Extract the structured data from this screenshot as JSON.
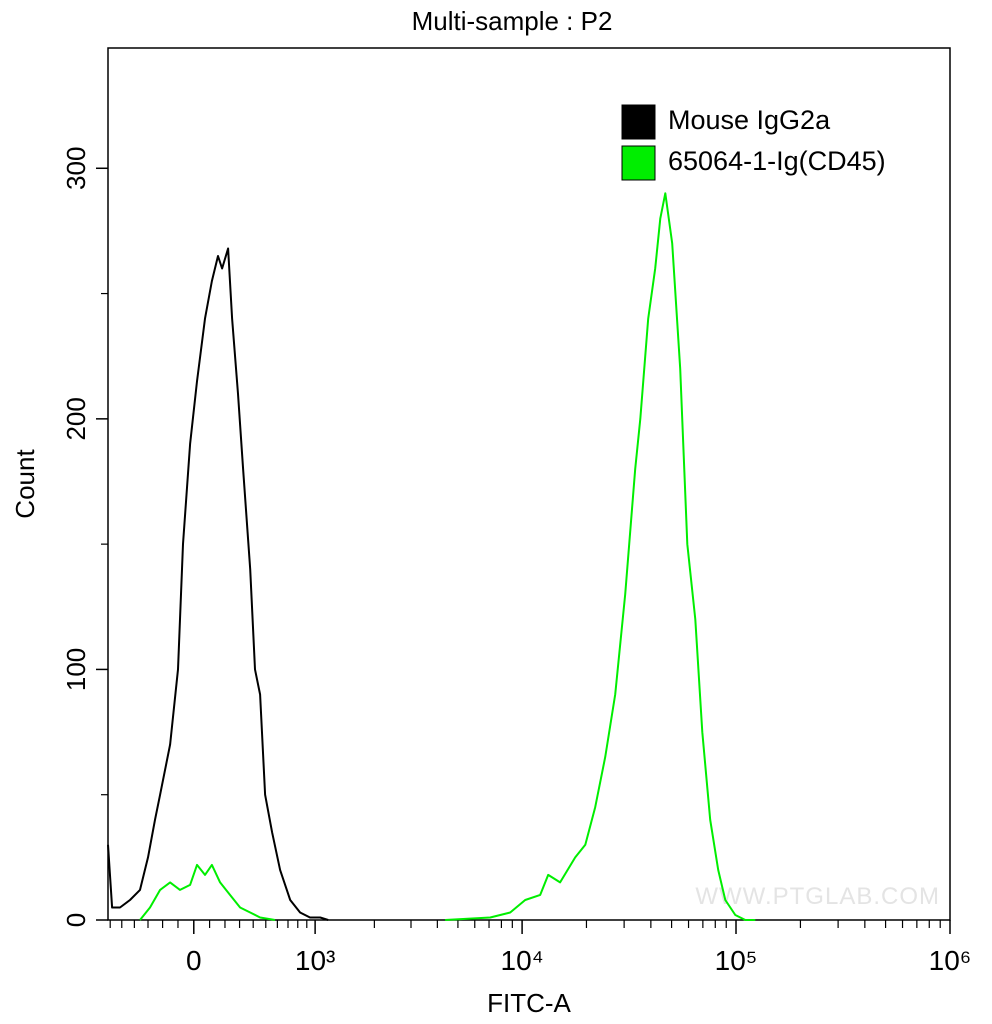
{
  "chart_data": {
    "type": "line",
    "title": "Multi-sample : P2",
    "x_label": "FITC-A",
    "y_label": "Count",
    "watermark": "WWW.PTGLAB.COM",
    "x_scale": "biexponential",
    "xlim": [
      -620,
      1000000
    ],
    "xticks": [
      0,
      {
        "value": 1000,
        "label": "10³"
      },
      {
        "value": 10000,
        "label": "10⁴"
      },
      {
        "value": 100000,
        "label": "10⁵"
      },
      {
        "value": 1000000,
        "label": "10⁶"
      }
    ],
    "xminorticks": [
      -600,
      -500,
      -400,
      -300,
      -200,
      -100,
      100,
      200,
      300,
      400,
      500,
      600,
      700,
      800,
      900,
      2000,
      3000,
      4000,
      5000,
      6000,
      7000,
      8000,
      9000,
      20000,
      30000,
      40000,
      50000,
      60000,
      70000,
      80000,
      90000,
      200000,
      300000,
      400000,
      500000,
      600000,
      700000,
      800000,
      900000
    ],
    "ylim": [
      0,
      348
    ],
    "yticks": [
      0,
      100,
      200,
      300
    ],
    "yminorticks": [
      50,
      150,
      250
    ],
    "legend": "top-right",
    "series": [
      {
        "name": "Mouse IgG2a",
        "color": "#000000",
        "x": [
          -620,
          -583,
          -515,
          -434,
          -358,
          -300,
          -251,
          -217,
          -151,
          -100,
          -68,
          -23,
          20,
          71,
          115,
          154,
          181,
          221,
          248,
          289,
          325,
          377,
          414,
          454,
          494,
          553,
          625,
          722,
          825,
          938,
          1065,
          1174
        ],
        "values": [
          30,
          5,
          5,
          8,
          12,
          25,
          40,
          50,
          70,
          100,
          150,
          190,
          215,
          240,
          255,
          265,
          260,
          268,
          240,
          210,
          180,
          140,
          100,
          90,
          50,
          35,
          20,
          8,
          3,
          1,
          1,
          0
        ]
      },
      {
        "name": "65064-1-Ig(CD45)",
        "color": "#00ee00",
        "x": [
          -358,
          -286,
          -217,
          -151,
          -87,
          -23,
          20,
          71,
          115,
          168,
          234,
          304,
          377,
          454,
          579,
          null,
          4352,
          7092,
          8798,
          10344,
          12153,
          13244,
          15064,
          17725,
          19744,
          21967,
          24482,
          27261,
          30362,
          33813,
          35685,
          38873,
          41915,
          44255,
          46712,
          50339,
          54873,
          59202,
          64526,
          69557,
          75787,
          82602,
          89125,
          99216,
          110477,
          123084
        ],
        "values": [
          0,
          5,
          12,
          15,
          12,
          14,
          22,
          18,
          22,
          15,
          10,
          5,
          3,
          1,
          0,
          null,
          0,
          1,
          3,
          8,
          10,
          18,
          15,
          25,
          30,
          45,
          65,
          90,
          130,
          180,
          200,
          240,
          260,
          280,
          290,
          270,
          220,
          150,
          120,
          75,
          40,
          20,
          8,
          2,
          0,
          0
        ]
      }
    ]
  }
}
